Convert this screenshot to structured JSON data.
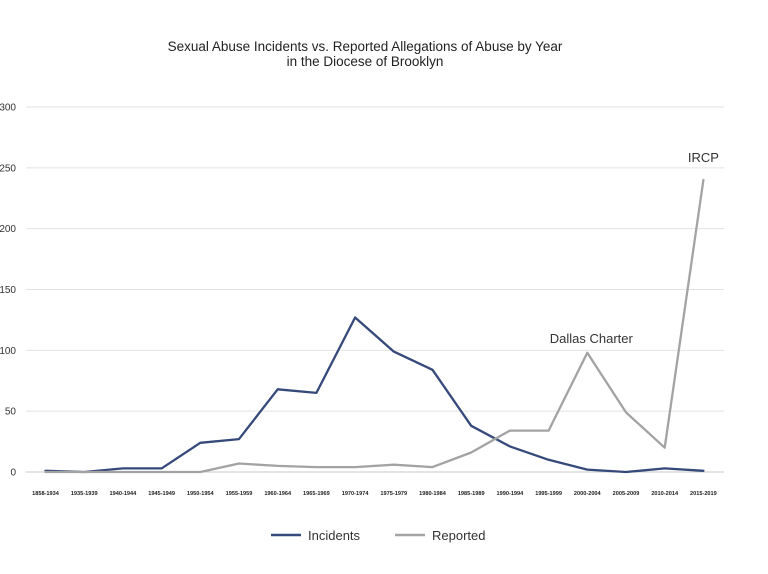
{
  "chart_data": {
    "type": "line",
    "title": "Sexual Abuse Incidents vs. Reported Allegations of Abuse by Year",
    "subtitle": "in the Diocese of Brooklyn",
    "xlabel": "",
    "ylabel": "",
    "ylim": [
      0,
      300
    ],
    "yticks": [
      "0",
      "50",
      "100",
      "150",
      "200",
      "250",
      "300"
    ],
    "grid": true,
    "legend_position": "bottom",
    "categories": [
      "1858-1934",
      "1935-1939",
      "1940-1944",
      "1945-1949",
      "1950-1954",
      "1955-1959",
      "1960-1964",
      "1965-1969",
      "1970-1974",
      "1975-1979",
      "1980-1984",
      "1985-1989",
      "1990-1994",
      "1995-1999",
      "2000-2004",
      "2005-2009",
      "2010-2014",
      "2015-2019"
    ],
    "series": [
      {
        "name": "Incidents",
        "color": "#35497a",
        "values": [
          1,
          0,
          3,
          3,
          24,
          27,
          68,
          65,
          127,
          99,
          84,
          38,
          21,
          10,
          2,
          0,
          3,
          1
        ]
      },
      {
        "name": "Reported",
        "color": "#a3a3a3",
        "values": [
          0,
          0,
          0,
          0,
          0,
          7,
          5,
          4,
          4,
          6,
          4,
          16,
          34,
          34,
          98,
          49,
          20,
          240
        ]
      }
    ],
    "annotations": [
      {
        "text": "Dallas Charter",
        "category": "2000-2004",
        "y": 98
      },
      {
        "text": "IRCP",
        "category": "2015-2019",
        "y": 240
      }
    ]
  }
}
